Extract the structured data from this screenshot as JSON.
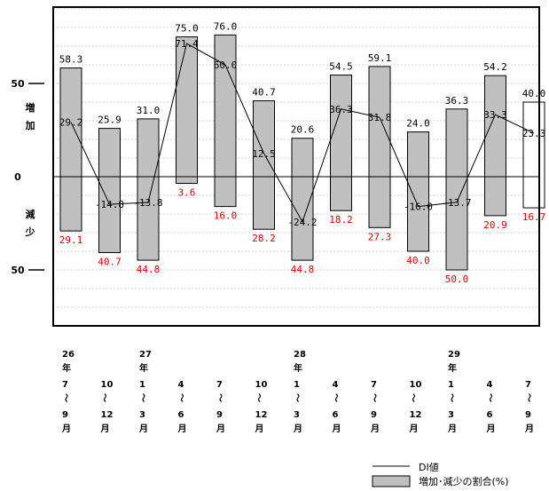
{
  "chart_data": {
    "type": "bar",
    "categories": [
      "26年7〜9月",
      "26年10〜12月",
      "27年1〜3月",
      "27年4〜6月",
      "27年7〜9月",
      "27年10〜12月",
      "28年1〜3月",
      "28年4〜6月",
      "28年7〜9月",
      "28年10〜12月",
      "29年1〜3月",
      "29年4〜6月",
      "29年7〜9月"
    ],
    "x_label_lines": [
      [
        "26",
        "年",
        "7",
        "〜",
        "9",
        "月"
      ],
      [
        "",
        "",
        "10",
        "〜",
        "12",
        "月"
      ],
      [
        "27",
        "年",
        "1",
        "〜",
        "3",
        "月"
      ],
      [
        "",
        "",
        "4",
        "〜",
        "6",
        "月"
      ],
      [
        "",
        "",
        "7",
        "〜",
        "9",
        "月"
      ],
      [
        "",
        "",
        "10",
        "〜",
        "12",
        "月"
      ],
      [
        "28",
        "年",
        "1",
        "〜",
        "3",
        "月"
      ],
      [
        "",
        "",
        "4",
        "〜",
        "6",
        "月"
      ],
      [
        "",
        "",
        "7",
        "〜",
        "9",
        "月"
      ],
      [
        "",
        "",
        "10",
        "〜",
        "12",
        "月"
      ],
      [
        "29",
        "年",
        "1",
        "〜",
        "3",
        "月"
      ],
      [
        "",
        "",
        "4",
        "〜",
        "6",
        "月"
      ],
      [
        "",
        "",
        "7",
        "〜",
        "9",
        "月"
      ]
    ],
    "series": [
      {
        "name": "増加",
        "values": [
          58.3,
          25.9,
          31.0,
          75.0,
          76.0,
          40.7,
          20.6,
          54.5,
          59.1,
          24.0,
          36.3,
          54.2,
          40.0
        ]
      },
      {
        "name": "減少",
        "values": [
          29.1,
          40.7,
          44.8,
          3.6,
          16.0,
          28.2,
          44.8,
          18.2,
          27.3,
          40.0,
          50.0,
          20.9,
          16.7
        ]
      },
      {
        "name": "DI値",
        "values": [
          29.2,
          -14.8,
          -13.8,
          71.4,
          60.0,
          12.5,
          -24.2,
          36.3,
          31.8,
          -16.0,
          -13.7,
          33.3,
          23.3
        ]
      }
    ],
    "labels": {
      "increase": [
        "58.3",
        "25.9",
        "31.0",
        "75.0",
        "76.0",
        "40.7",
        "20.6",
        "54.5",
        "59.1",
        "24.0",
        "36.3",
        "54.2",
        "40.0"
      ],
      "decrease": [
        "29.1",
        "40.7",
        "44.8",
        "3.6",
        "16.0",
        "28.2",
        "44.8",
        "18.2",
        "27.3",
        "40.0",
        "50.0",
        "20.9",
        "16.7"
      ],
      "di": [
        "29.2",
        "-14.8",
        "-13.8",
        "71.4",
        "60.0",
        "12.5",
        "-24.2",
        "36.3",
        "31.8",
        "-16.0",
        "-13.7",
        "33.3",
        "23.3"
      ]
    },
    "forecast_last": true,
    "y_ticks": [
      {
        "value": 50,
        "label": "50"
      },
      {
        "value": 0,
        "label": "0"
      },
      {
        "value": -50,
        "label": "50"
      }
    ],
    "ylim": [
      -80,
      100
    ],
    "y_side_labels": {
      "increase": [
        "増",
        "加"
      ],
      "decrease": [
        "減",
        "少"
      ]
    },
    "legend": {
      "line": "DI値",
      "bar": "増加･減少の割合(%)"
    },
    "colors": {
      "bar": "#c0c0c0",
      "forecast_bar": "#ffffff",
      "line": "#000000",
      "decrease_label": "#e00000",
      "grid": "#a8a8a8"
    },
    "grid": true
  }
}
